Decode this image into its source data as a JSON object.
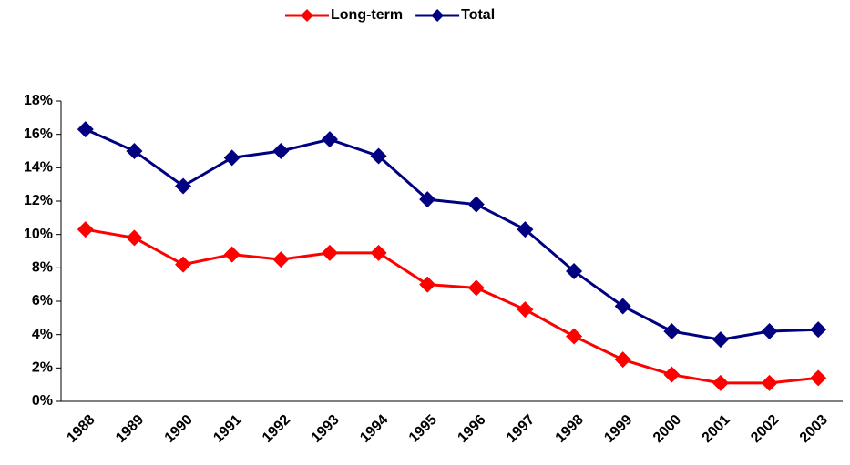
{
  "chart_data": {
    "type": "line",
    "categories": [
      "1988",
      "1989",
      "1990",
      "1991",
      "1992",
      "1993",
      "1994",
      "1995",
      "1996",
      "1997",
      "1998",
      "1999",
      "2000",
      "2001",
      "2002",
      "2003"
    ],
    "series": [
      {
        "name": "Long-term",
        "color": "#ff0000",
        "values": [
          10.3,
          9.8,
          8.2,
          8.8,
          8.5,
          8.9,
          8.9,
          7.0,
          6.8,
          5.5,
          3.9,
          2.5,
          1.6,
          1.1,
          1.1,
          1.4
        ]
      },
      {
        "name": "Total",
        "color": "#000080",
        "values": [
          16.3,
          15.0,
          12.9,
          14.6,
          15.0,
          15.7,
          14.7,
          12.1,
          11.8,
          10.3,
          7.8,
          5.7,
          4.2,
          3.7,
          4.2,
          4.3
        ]
      }
    ],
    "ylim": [
      0,
      18
    ],
    "yticks": [
      {
        "value": 0,
        "label": "0%"
      },
      {
        "value": 2,
        "label": "2%"
      },
      {
        "value": 4,
        "label": "4%"
      },
      {
        "value": 6,
        "label": "6%"
      },
      {
        "value": 8,
        "label": "8%"
      },
      {
        "value": 10,
        "label": "10%"
      },
      {
        "value": 12,
        "label": "12%"
      },
      {
        "value": 14,
        "label": "14%"
      },
      {
        "value": 16,
        "label": "16%"
      },
      {
        "value": 18,
        "label": "18%"
      }
    ],
    "grid": false,
    "legend": "top"
  }
}
